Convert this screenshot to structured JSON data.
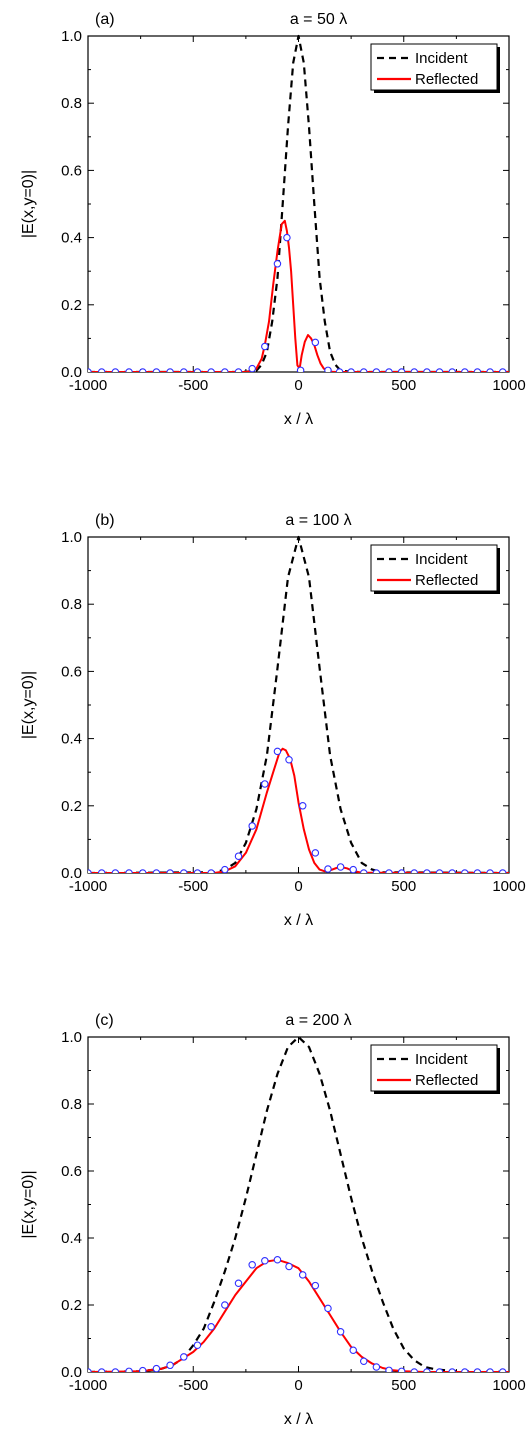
{
  "chart_data": [
    {
      "type": "line",
      "panel_label": "(a)",
      "title": "a = 50 λ",
      "xlabel": "x / λ",
      "ylabel": "|E(x,y=0)|",
      "xlim": [
        -1000,
        1000
      ],
      "ylim": [
        0,
        1.0
      ],
      "xticks": [
        "-1000",
        "-500",
        "0",
        "500",
        "1000"
      ],
      "yticks": [
        "0.0",
        "0.2",
        "0.4",
        "0.6",
        "0.8",
        "1.0"
      ],
      "legend": {
        "position": "top-right",
        "entries": [
          "Incident",
          "Reflected"
        ]
      },
      "series": [
        {
          "name": "Incident",
          "style": "dashed",
          "color": "#000000",
          "x": [
            -1000,
            -300,
            -250,
            -200,
            -175,
            -150,
            -125,
            -100,
            -75,
            -50,
            -25,
            0,
            25,
            50,
            75,
            100,
            125,
            150,
            175,
            200,
            250,
            300,
            1000
          ],
          "y": [
            0,
            0,
            0.001,
            0.004,
            0.022,
            0.06,
            0.15,
            0.28,
            0.5,
            0.73,
            0.92,
            1.0,
            0.92,
            0.73,
            0.5,
            0.28,
            0.15,
            0.06,
            0.022,
            0.004,
            0.001,
            0,
            0
          ]
        },
        {
          "name": "Reflected",
          "style": "solid",
          "color": "#ff0000",
          "x": [
            -1000,
            -250,
            -225,
            -200,
            -175,
            -160,
            -140,
            -120,
            -100,
            -80,
            -65,
            -55,
            -45,
            -35,
            -25,
            -15,
            -5,
            5,
            15,
            30,
            45,
            60,
            75,
            90,
            105,
            120,
            140,
            160,
            180,
            200,
            1000
          ],
          "y": [
            0,
            0,
            0.003,
            0.01,
            0.04,
            0.08,
            0.15,
            0.26,
            0.36,
            0.44,
            0.45,
            0.42,
            0.37,
            0.3,
            0.2,
            0.1,
            0.02,
            0.01,
            0.05,
            0.09,
            0.11,
            0.1,
            0.08,
            0.05,
            0.025,
            0.01,
            0.003,
            0.001,
            0,
            0,
            0
          ]
        }
      ],
      "markers": {
        "color": "#3030ff",
        "x": [
          -1000,
          -935,
          -870,
          -805,
          -740,
          -675,
          -610,
          -545,
          -480,
          -415,
          -350,
          -285,
          -220,
          -160,
          -100,
          -55,
          10,
          80,
          140,
          195,
          250,
          310,
          370,
          430,
          490,
          550,
          610,
          670,
          730,
          790,
          850,
          910,
          970
        ],
        "y": [
          0,
          0,
          0,
          0,
          0,
          0,
          0,
          0,
          0,
          0,
          0,
          0,
          0.01,
          0.076,
          0.322,
          0.4,
          0.005,
          0.088,
          0.005,
          0,
          0,
          0,
          0,
          0,
          0,
          0,
          0,
          0,
          0,
          0,
          0,
          0,
          0
        ]
      }
    },
    {
      "type": "line",
      "panel_label": "(b)",
      "title": "a = 100 λ",
      "xlabel": "x / λ",
      "ylabel": "|E(x,y=0)|",
      "xlim": [
        -1000,
        1000
      ],
      "ylim": [
        0,
        1.0
      ],
      "xticks": [
        "-1000",
        "-500",
        "0",
        "500",
        "1000"
      ],
      "yticks": [
        "0.0",
        "0.2",
        "0.4",
        "0.6",
        "0.8",
        "1.0"
      ],
      "legend": {
        "position": "top-right",
        "entries": [
          "Incident",
          "Reflected"
        ]
      },
      "series": [
        {
          "name": "Incident",
          "style": "dashed",
          "color": "#000000",
          "x": [
            -1000,
            -400,
            -350,
            -300,
            -250,
            -200,
            -150,
            -100,
            -50,
            0,
            50,
            100,
            150,
            200,
            250,
            300,
            350,
            400,
            1000
          ],
          "y": [
            0,
            0.002,
            0.01,
            0.03,
            0.09,
            0.19,
            0.35,
            0.61,
            0.88,
            1.0,
            0.88,
            0.61,
            0.35,
            0.19,
            0.09,
            0.03,
            0.01,
            0.002,
            0
          ]
        },
        {
          "name": "Reflected",
          "style": "solid",
          "color": "#ff0000",
          "x": [
            -1000,
            -400,
            -350,
            -300,
            -250,
            -200,
            -150,
            -120,
            -90,
            -75,
            -60,
            -40,
            -20,
            0,
            25,
            50,
            75,
            100,
            125,
            150,
            180,
            200,
            230,
            260,
            300,
            1000
          ],
          "y": [
            0,
            0,
            0.005,
            0.02,
            0.06,
            0.13,
            0.24,
            0.3,
            0.36,
            0.37,
            0.365,
            0.34,
            0.29,
            0.21,
            0.13,
            0.07,
            0.03,
            0.01,
            0.005,
            0.008,
            0.015,
            0.018,
            0.014,
            0.006,
            0.001,
            0
          ]
        }
      ],
      "markers": {
        "color": "#3030ff",
        "x": [
          -1000,
          -935,
          -870,
          -805,
          -740,
          -675,
          -610,
          -545,
          -480,
          -415,
          -350,
          -285,
          -220,
          -160,
          -100,
          -45,
          20,
          80,
          140,
          200,
          260,
          310,
          370,
          430,
          490,
          550,
          610,
          670,
          730,
          790,
          850,
          910,
          970
        ],
        "y": [
          0,
          0,
          0,
          0,
          0,
          0,
          0,
          0,
          0,
          0,
          0.01,
          0.05,
          0.14,
          0.265,
          0.362,
          0.337,
          0.2,
          0.06,
          0.012,
          0.018,
          0.01,
          0,
          0,
          0,
          0,
          0,
          0,
          0,
          0,
          0,
          0,
          0,
          0
        ]
      }
    },
    {
      "type": "line",
      "panel_label": "(c)",
      "title": "a = 200 λ",
      "xlabel": "x / λ",
      "ylabel": "|E(x,y=0)|",
      "xlim": [
        -1000,
        1000
      ],
      "ylim": [
        0,
        1.0
      ],
      "xticks": [
        "-1000",
        "-500",
        "0",
        "500",
        "1000"
      ],
      "yticks": [
        "0.0",
        "0.2",
        "0.4",
        "0.6",
        "0.8",
        "1.0"
      ],
      "legend": {
        "position": "top-right",
        "entries": [
          "Incident",
          "Reflected"
        ]
      },
      "series": [
        {
          "name": "Incident",
          "style": "dashed",
          "color": "#000000",
          "x": [
            -1000,
            -750,
            -650,
            -600,
            -550,
            -500,
            -450,
            -400,
            -350,
            -300,
            -250,
            -200,
            -150,
            -100,
            -50,
            0,
            50,
            100,
            150,
            200,
            250,
            300,
            350,
            400,
            450,
            500,
            550,
            600,
            650,
            750,
            1000
          ],
          "y": [
            0,
            0.002,
            0.01,
            0.02,
            0.04,
            0.08,
            0.13,
            0.21,
            0.3,
            0.4,
            0.52,
            0.65,
            0.78,
            0.89,
            0.97,
            1.0,
            0.97,
            0.89,
            0.78,
            0.65,
            0.52,
            0.4,
            0.3,
            0.21,
            0.13,
            0.07,
            0.035,
            0.015,
            0.008,
            0.002,
            0
          ]
        },
        {
          "name": "Reflected",
          "style": "solid",
          "color": "#ff0000",
          "x": [
            -1000,
            -750,
            -650,
            -600,
            -550,
            -500,
            -450,
            -400,
            -350,
            -300,
            -250,
            -200,
            -150,
            -100,
            -50,
            0,
            50,
            100,
            150,
            200,
            250,
            300,
            350,
            400,
            450,
            500,
            600,
            1000
          ],
          "y": [
            0,
            0.002,
            0.01,
            0.02,
            0.04,
            0.06,
            0.09,
            0.13,
            0.18,
            0.23,
            0.27,
            0.31,
            0.33,
            0.335,
            0.325,
            0.31,
            0.27,
            0.22,
            0.17,
            0.12,
            0.075,
            0.045,
            0.025,
            0.012,
            0.005,
            0.002,
            0,
            0
          ]
        }
      ],
      "markers": {
        "color": "#3030ff",
        "x": [
          -1000,
          -935,
          -870,
          -805,
          -740,
          -675,
          -610,
          -545,
          -480,
          -415,
          -350,
          -285,
          -220,
          -160,
          -100,
          -45,
          20,
          80,
          140,
          200,
          260,
          310,
          370,
          430,
          490,
          550,
          610,
          670,
          730,
          790,
          850,
          910,
          970
        ],
        "y": [
          0,
          0,
          0,
          0.002,
          0.004,
          0.01,
          0.02,
          0.045,
          0.08,
          0.135,
          0.2,
          0.265,
          0.32,
          0.332,
          0.335,
          0.315,
          0.29,
          0.258,
          0.19,
          0.12,
          0.065,
          0.032,
          0.015,
          0.005,
          0.002,
          0,
          0,
          0,
          0,
          0,
          0,
          0,
          0
        ]
      }
    }
  ]
}
